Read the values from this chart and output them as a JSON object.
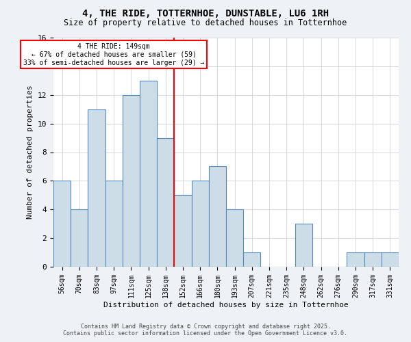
{
  "title": "4, THE RIDE, TOTTERNHOE, DUNSTABLE, LU6 1RH",
  "subtitle": "Size of property relative to detached houses in Totternhoe",
  "xlabel": "Distribution of detached houses by size in Totternhoe",
  "ylabel": "Number of detached properties",
  "categories": [
    "56sqm",
    "70sqm",
    "83sqm",
    "97sqm",
    "111sqm",
    "125sqm",
    "138sqm",
    "152sqm",
    "166sqm",
    "180sqm",
    "193sqm",
    "207sqm",
    "221sqm",
    "235sqm",
    "248sqm",
    "262sqm",
    "276sqm",
    "290sqm",
    "317sqm",
    "331sqm"
  ],
  "values": [
    6,
    4,
    11,
    6,
    12,
    13,
    9,
    5,
    6,
    7,
    4,
    1,
    0,
    0,
    3,
    0,
    0,
    1,
    1,
    1
  ],
  "bar_color": "#ccdde8",
  "bar_edge_color": "#5588bb",
  "marker_index": 7,
  "marker_label": "4 THE RIDE: 149sqm",
  "annotation_line1": "← 67% of detached houses are smaller (59)",
  "annotation_line2": "33% of semi-detached houses are larger (29) →",
  "ylim": [
    0,
    16
  ],
  "yticks": [
    0,
    2,
    4,
    6,
    8,
    10,
    12,
    14,
    16
  ],
  "footer_line1": "Contains HM Land Registry data © Crown copyright and database right 2025.",
  "footer_line2": "Contains public sector information licensed under the Open Government Licence v3.0.",
  "bg_color": "#eef2f7",
  "plot_bg_color": "#ffffff",
  "grid_color": "#c8c8d0"
}
